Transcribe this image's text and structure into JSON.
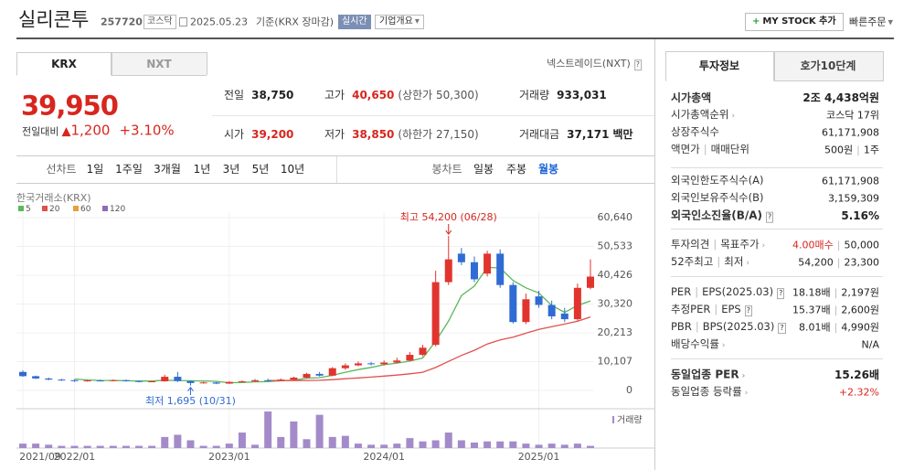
{
  "header": {
    "name": "실리콘투",
    "code": "257720",
    "market": "코스닥",
    "date": "2025.05.23",
    "basis": "기준(KRX 장마감)",
    "realtime": "실시간",
    "company_info": "기업개요",
    "my_stock": "MY STOCK 추가",
    "quick_order": "빠른주문"
  },
  "exchange_tabs": [
    "KRX",
    "NXT"
  ],
  "nxt_link": "넥스트레이드(NXT)",
  "price": {
    "current": "39,950",
    "change_label": "전일대비",
    "change": "1,200",
    "change_rate": "+3.10%"
  },
  "quote": [
    [
      {
        "label": "전일",
        "value": "38,750"
      },
      {
        "label": "고가",
        "value": "40,650",
        "note": "(상한가 50,300)"
      },
      {
        "label": "거래량",
        "value": "933,031"
      }
    ],
    [
      {
        "label": "시가",
        "value": "39,200"
      },
      {
        "label": "저가",
        "value": "38,850",
        "note": "(하한가 27,150)"
      },
      {
        "label": "거래대금",
        "value": "37,171",
        "unit": "백만"
      }
    ]
  ],
  "period_buttons": [
    "선차트",
    "1일",
    "1주일",
    "3개월",
    "1년",
    "3년",
    "5년",
    "10년"
  ],
  "candle_buttons": [
    "봉차트",
    "일봉",
    "주봉",
    "월봉"
  ],
  "chart_data": {
    "type": "candlestick",
    "source": "한국거래소(KRX)",
    "categories": [
      "2021/09",
      null,
      null,
      null,
      "2022/01",
      null,
      null,
      null,
      null,
      null,
      null,
      null,
      null,
      null,
      null,
      null,
      "2023/01",
      null,
      null,
      null,
      null,
      null,
      null,
      null,
      null,
      null,
      null,
      null,
      "2024/01",
      null,
      null,
      null,
      null,
      null,
      null,
      null,
      null,
      null,
      null,
      null,
      "2025/01",
      null,
      null,
      null,
      null
    ],
    "open": [
      6500,
      5000,
      4200,
      3800,
      3600,
      3300,
      3500,
      3400,
      3600,
      3300,
      3000,
      3200,
      4800,
      3300,
      2600,
      2800,
      2400,
      3000,
      3200,
      3600,
      3400,
      3800,
      4500,
      5800,
      5200,
      7800,
      8800,
      9500,
      9200,
      9800,
      10500,
      12500,
      16000,
      38000,
      48000,
      45000,
      41000,
      48000,
      37000,
      24000,
      33000,
      30000,
      27000,
      25000,
      36000
    ],
    "high": [
      7000,
      5200,
      4500,
      4100,
      3800,
      3700,
      3800,
      3900,
      3800,
      3500,
      3400,
      5500,
      6500,
      3500,
      3000,
      3000,
      3200,
      3500,
      4000,
      4100,
      4200,
      4800,
      6200,
      6500,
      8200,
      9500,
      10200,
      10000,
      10500,
      11500,
      13500,
      16000,
      42000,
      54200,
      50000,
      47000,
      49000,
      49500,
      38000,
      34000,
      35000,
      31500,
      29000,
      37500,
      46000
    ],
    "low": [
      4800,
      4000,
      3600,
      3400,
      3000,
      3100,
      3200,
      3200,
      3100,
      2800,
      2900,
      3100,
      3000,
      1695,
      2400,
      2200,
      2300,
      2900,
      3000,
      3200,
      3300,
      3600,
      4300,
      4900,
      5000,
      7200,
      8500,
      8800,
      8800,
      9500,
      10200,
      12000,
      15500,
      37000,
      44000,
      38000,
      40000,
      36000,
      23500,
      23300,
      29000,
      25000,
      24000,
      24500,
      35500
    ],
    "close": [
      5000,
      4200,
      3800,
      3600,
      3300,
      3500,
      3400,
      3600,
      3300,
      3000,
      3200,
      4800,
      3300,
      2600,
      2800,
      2400,
      3000,
      3200,
      3600,
      3400,
      3800,
      4500,
      5800,
      5200,
      7800,
      8800,
      9500,
      9200,
      9800,
      10500,
      12500,
      15000,
      38000,
      46000,
      45000,
      39000,
      48000,
      37000,
      24000,
      32000,
      30000,
      26000,
      25000,
      36000,
      39950
    ],
    "up_color": "#e2342f",
    "down_color": "#2f6bd4",
    "series": [
      {
        "name": "5",
        "color": "#5bb85b",
        "values": [
          null,
          null,
          null,
          null,
          4000,
          3700,
          3500,
          3500,
          3400,
          3300,
          3300,
          3600,
          3500,
          3400,
          3300,
          3200,
          2700,
          2800,
          3000,
          3100,
          3400,
          3600,
          4300,
          4500,
          5300,
          6400,
          7300,
          8100,
          9000,
          9600,
          10300,
          11400,
          17200,
          24400,
          33300,
          36600,
          43200,
          43000,
          38600,
          36000,
          34200,
          29800,
          27400,
          29800,
          31400
        ]
      },
      {
        "name": "20",
        "color": "#e0504d",
        "values": [
          null,
          null,
          null,
          null,
          null,
          null,
          null,
          null,
          null,
          null,
          null,
          null,
          null,
          null,
          null,
          null,
          null,
          null,
          null,
          3500,
          3450,
          3450,
          3500,
          3550,
          3800,
          4100,
          4400,
          4700,
          5050,
          5400,
          5850,
          6400,
          8050,
          10200,
          12300,
          14100,
          16300,
          17700,
          18700,
          20100,
          21400,
          22400,
          23300,
          24300,
          25800
        ]
      },
      {
        "name": "60",
        "color": "#e6a03c",
        "values": [
          null,
          null,
          null,
          null,
          null,
          null,
          null,
          null,
          null,
          null,
          null,
          null,
          null,
          null,
          null,
          null,
          null,
          null,
          null,
          null,
          null,
          null,
          null,
          null,
          null,
          null,
          null,
          null,
          null,
          null,
          null,
          null,
          null,
          null,
          null,
          null,
          null,
          null,
          null,
          null,
          null,
          null,
          null,
          null,
          null
        ]
      },
      {
        "name": "120",
        "color": "#8e6bb8",
        "values": [
          null,
          null,
          null,
          null,
          null,
          null,
          null,
          null,
          null,
          null,
          null,
          null,
          null,
          null,
          null,
          null,
          null,
          null,
          null,
          null,
          null,
          null,
          null,
          null,
          null,
          null,
          null,
          null,
          null,
          null,
          null,
          null,
          null,
          null,
          null,
          null,
          null,
          null,
          null,
          null,
          null,
          null,
          null,
          null,
          null
        ]
      }
    ],
    "volume": {
      "name": "거래량",
      "color": "#a38bc9",
      "values": [
        4,
        4,
        3,
        2,
        2,
        2,
        2,
        2,
        2,
        2,
        2,
        10,
        12,
        7,
        2,
        2,
        4,
        14,
        3,
        33,
        10,
        24,
        8,
        30,
        10,
        11,
        4,
        3,
        3,
        4,
        9,
        6,
        7,
        14,
        7,
        5,
        6,
        6,
        6,
        4,
        3,
        4,
        3,
        4,
        2
      ]
    },
    "max_label": "최고 54,200 (06/28)",
    "min_label": "최저 1,695 (10/31)",
    "ylim": [
      0,
      60640
    ],
    "yticks": [
      0,
      {
        "value": 10107,
        "label": "10,107"
      },
      {
        "value": 20213,
        "label": "20,213"
      },
      {
        "value": 30320,
        "label": "30,320"
      },
      {
        "value": 40426,
        "label": "40,426"
      },
      {
        "value": 50533,
        "label": "50,533"
      },
      {
        "value": 60640,
        "label": "60,640"
      }
    ],
    "grid": true
  },
  "info_tabs": [
    "투자정보",
    "호가10단계"
  ],
  "info_sections": [
    [
      {
        "labels": [
          "시가총액"
        ],
        "values": [
          "2조 4,438억원"
        ]
      },
      {
        "labels": [
          "시가총액순위"
        ],
        "values": [
          "코스닥 17위"
        ]
      },
      {
        "labels": [
          "상장주식수"
        ],
        "values": [
          "61,171,908"
        ]
      },
      {
        "labels": [
          "액면가",
          "매매단위"
        ],
        "values": [
          "500원",
          "1주"
        ]
      }
    ],
    [
      {
        "labels": [
          "외국인한도주식수(A)"
        ],
        "values": [
          "61,171,908"
        ]
      },
      {
        "labels": [
          "외국인보유주식수(B)"
        ],
        "values": [
          "3,159,309"
        ]
      },
      {
        "labels": [
          "외국인소진율(B/A)"
        ],
        "values": [
          "5.16%"
        ]
      }
    ],
    [
      {
        "labels": [
          "투자의견",
          "목표주가"
        ],
        "values": [
          "4.00매수",
          "50,000"
        ]
      },
      {
        "labels": [
          "52주최고",
          "최저"
        ],
        "values": [
          "54,200",
          "23,300"
        ]
      }
    ],
    [
      {
        "labels": [
          "PER",
          "EPS(2025.03)"
        ],
        "values": [
          "18.18배",
          "2,197원"
        ]
      },
      {
        "labels": [
          "추정PER",
          "EPS"
        ],
        "values": [
          "15.37배",
          "2,600원"
        ]
      },
      {
        "labels": [
          "PBR",
          "BPS(2025.03)"
        ],
        "values": [
          "8.01배",
          "4,990원"
        ]
      },
      {
        "labels": [
          "배당수익률"
        ],
        "values": [
          "N/A"
        ]
      }
    ],
    [
      {
        "labels": [
          "동일업종 PER"
        ],
        "values": [
          "15.26배"
        ]
      },
      {
        "labels": [
          "동일업종 등락률"
        ],
        "values": [
          "+2.32%"
        ]
      }
    ]
  ]
}
